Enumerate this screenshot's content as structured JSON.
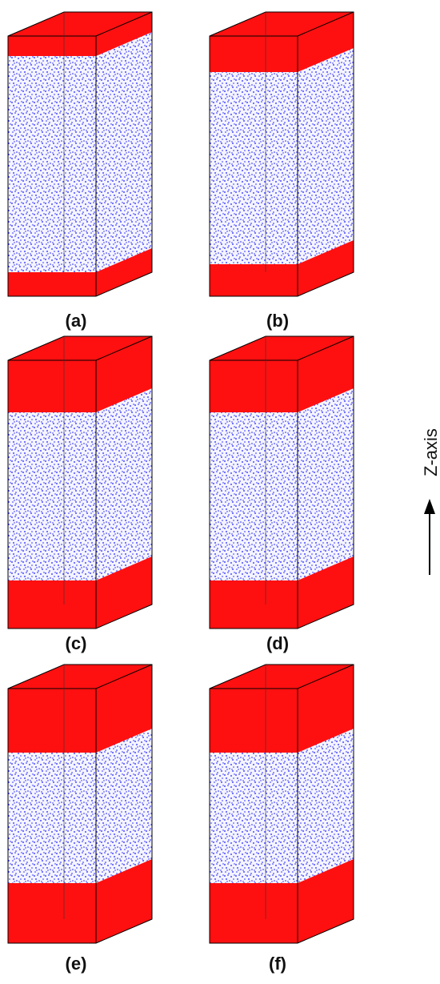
{
  "panels": [
    {
      "label": "(a)"
    },
    {
      "label": "(b)"
    },
    {
      "label": "(c)"
    },
    {
      "label": "(d)"
    },
    {
      "label": "(e)"
    },
    {
      "label": "(f)"
    }
  ],
  "axis_label": "Z-axis"
}
